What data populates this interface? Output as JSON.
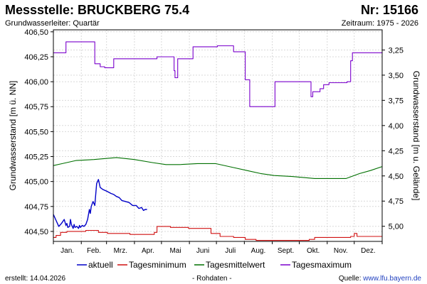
{
  "header": {
    "title": "Messstelle: BRUCKBERG 75.4",
    "number": "Nr: 15166",
    "aquifer": "Grundwasserleiter: Quartär",
    "period": "Zeitraum: 1975 - 2026"
  },
  "footer": {
    "created": "erstellt:  14.04.2026",
    "raw": "- Rohdaten -",
    "source_label": "Quelle: ",
    "source_url": "www.lfu.bayern.de"
  },
  "colors": {
    "aktuell": "#0000c8",
    "minimum": "#d01010",
    "mittel": "#007000",
    "maximum": "#7a00cc",
    "grid": "#d9d9d9"
  },
  "chart_data": {
    "type": "line",
    "ylabel_left": "Grundwasserstand [m ü. NN]",
    "ylabel_right": "Grundwasserstand [m u. Gelände]",
    "ylim": [
      404.4,
      406.52
    ],
    "ylim_right": [
      5.15,
      3.05
    ],
    "yticks_left": [
      "406,50",
      "406,25",
      "406,00",
      "405,75",
      "405,50",
      "405,25",
      "405,00",
      "404,75",
      "404,50"
    ],
    "yticks_left_values": [
      406.5,
      406.25,
      406.0,
      405.75,
      405.5,
      405.25,
      405.0,
      404.75,
      404.5
    ],
    "yticks_right": [
      "3,25",
      "3,50",
      "3,75",
      "4,00",
      "4,25",
      "4,50",
      "4,75",
      "5,00"
    ],
    "yticks_right_values": [
      3.25,
      3.5,
      3.75,
      4.0,
      4.25,
      4.5,
      4.75,
      5.0
    ],
    "x_unit": "day of year",
    "xlim": [
      0,
      365
    ],
    "months": [
      "Jan.",
      "Feb.",
      "Mrz.",
      "Apr.",
      "Mai",
      "Juni",
      "Juli",
      "Aug.",
      "Sept.",
      "Okt.",
      "Nov.",
      "Dez."
    ],
    "month_starts": [
      0,
      31,
      59,
      90,
      120,
      151,
      181,
      212,
      243,
      273,
      304,
      334,
      365
    ],
    "legend": [
      "aktuell",
      "Tagesminimum",
      "Tagesmittelwert",
      "Tagesmaximum"
    ],
    "series": [
      {
        "name": "Tagesmaximum",
        "key": "maximum",
        "step": true,
        "x": [
          0,
          14,
          46,
          52,
          57,
          67,
          115,
          134,
          135,
          138,
          155,
          182,
          200,
          213,
          218,
          246,
          286,
          288,
          296,
          300,
          306,
          326,
          330,
          332,
          365
        ],
        "y": [
          406.29,
          406.4,
          406.18,
          406.15,
          406.14,
          406.23,
          406.25,
          406.11,
          406.04,
          406.23,
          406.35,
          406.36,
          406.3,
          406.02,
          405.75,
          406.0,
          405.85,
          405.9,
          405.93,
          405.97,
          405.99,
          406.0,
          406.21,
          406.29,
          406.3
        ]
      },
      {
        "name": "Tagesmittelwert",
        "key": "mittel",
        "step": false,
        "x": [
          0,
          10,
          25,
          45,
          70,
          90,
          110,
          125,
          140,
          160,
          180,
          200,
          215,
          230,
          245,
          265,
          290,
          310,
          325,
          340,
          352,
          365
        ],
        "y": [
          405.16,
          405.18,
          405.21,
          405.22,
          405.24,
          405.22,
          405.19,
          405.17,
          405.17,
          405.18,
          405.18,
          405.14,
          405.11,
          405.08,
          405.06,
          405.05,
          405.03,
          405.03,
          405.03,
          405.08,
          405.11,
          405.15
        ]
      },
      {
        "name": "Tagesminimum",
        "key": "minimum",
        "step": true,
        "x": [
          0,
          3,
          8,
          15,
          36,
          50,
          60,
          85,
          100,
          112,
          115,
          130,
          150,
          167,
          175,
          185,
          200,
          213,
          225,
          280,
          284,
          290,
          330,
          334,
          337,
          365
        ],
        "y": [
          404.44,
          404.46,
          404.49,
          404.5,
          404.51,
          404.49,
          404.48,
          404.47,
          404.47,
          404.49,
          404.55,
          404.54,
          404.53,
          404.53,
          404.48,
          404.45,
          404.44,
          404.42,
          404.41,
          404.41,
          404.42,
          404.44,
          404.45,
          404.48,
          404.45,
          404.45
        ]
      },
      {
        "name": "aktuell",
        "key": "aktuell",
        "step": false,
        "x": [
          0,
          3,
          6,
          9,
          12,
          14,
          15,
          16,
          18,
          19,
          20,
          22,
          23,
          24,
          26,
          28,
          29,
          30,
          32,
          34,
          36,
          38,
          40,
          41,
          42,
          44,
          46,
          48,
          50,
          52,
          55,
          60,
          64,
          67,
          70,
          73,
          76,
          80,
          84,
          88,
          92,
          95,
          98,
          100,
          102,
          104
        ],
        "y": [
          404.67,
          404.61,
          404.55,
          404.58,
          404.62,
          404.56,
          404.58,
          404.54,
          404.55,
          404.62,
          404.57,
          404.53,
          404.57,
          404.54,
          404.55,
          404.53,
          404.56,
          404.54,
          404.56,
          404.55,
          404.57,
          404.62,
          404.72,
          404.68,
          404.75,
          404.8,
          404.76,
          404.98,
          405.02,
          404.94,
          404.92,
          404.9,
          404.88,
          404.87,
          404.85,
          404.84,
          404.81,
          404.8,
          404.79,
          404.76,
          404.76,
          404.73,
          404.74,
          404.71,
          404.72,
          404.72
        ]
      }
    ]
  }
}
